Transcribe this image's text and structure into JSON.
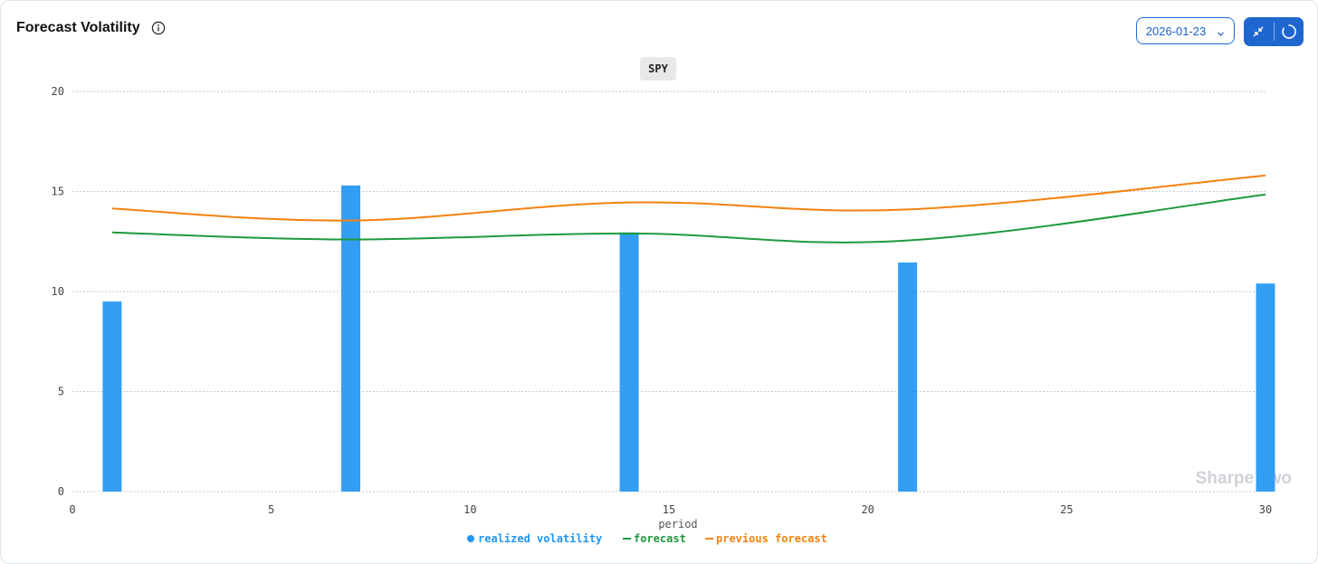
{
  "header": {
    "title": "Forecast Volatility",
    "date_value": "2026-01-23"
  },
  "icons": {
    "info": "info-icon",
    "dropdown": "chevron-down-icon",
    "collapse": "collapse-icon",
    "refresh": "loading-spinner-icon"
  },
  "colors": {
    "accent": "#1f66cf",
    "bars": "#2196f3",
    "forecast": "#1e9a3c",
    "previous_forecast": "#f5820f"
  },
  "watermark": "Sharpe Two",
  "chart_data": {
    "type": "bar",
    "title": "SPY",
    "xlabel": "period",
    "ylabel": "",
    "xlim": [
      0,
      30
    ],
    "ylim": [
      0,
      20
    ],
    "x_ticks": [
      0,
      5,
      10,
      15,
      20,
      25,
      30
    ],
    "y_ticks": [
      0,
      5,
      10,
      15,
      20
    ],
    "grid": true,
    "legend_position": "bottom-center",
    "series": [
      {
        "name": "realized volatility",
        "type": "bar",
        "x": [
          1,
          7,
          14,
          21,
          30
        ],
        "values": [
          9.5,
          15.3,
          12.95,
          11.45,
          10.4
        ]
      },
      {
        "name": "forecast",
        "type": "line",
        "x": [
          1,
          7,
          14,
          21,
          30
        ],
        "values": [
          12.95,
          12.6,
          12.9,
          12.55,
          14.85
        ]
      },
      {
        "name": "previous forecast",
        "type": "line",
        "x": [
          1,
          7,
          14,
          21,
          30
        ],
        "values": [
          14.15,
          13.55,
          14.45,
          14.1,
          15.8
        ]
      }
    ]
  }
}
